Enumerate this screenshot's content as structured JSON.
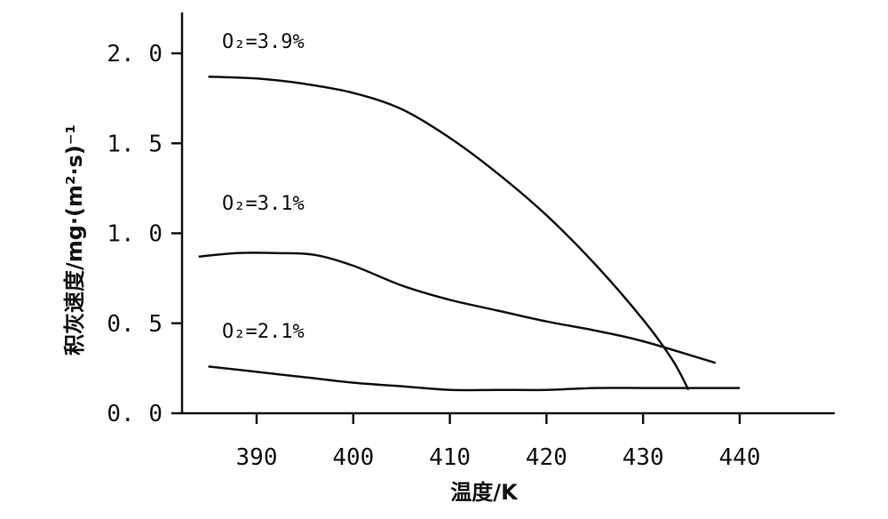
{
  "chart_data": {
    "type": "line",
    "xlabel": "温度/K",
    "ylabel": "积灰速度/mg·(m²·s)⁻¹",
    "xlim": [
      381,
      448
    ],
    "ylim": [
      0,
      2.2
    ],
    "x_ticks": [
      390,
      400,
      410,
      420,
      430,
      440
    ],
    "x_tick_labels": [
      "390",
      "400",
      "410",
      "420",
      "430",
      "440"
    ],
    "y_ticks": [
      0.0,
      0.5,
      1.0,
      1.5,
      2.0
    ],
    "y_tick_labels": [
      "0. 0",
      "0. 5",
      "1. 0",
      "1. 5",
      "2. 0"
    ],
    "series": [
      {
        "name": "O₂=3.9%",
        "x": [
          385,
          390,
          395,
          400,
          405,
          410,
          415,
          420,
          425,
          430,
          433,
          434.7
        ],
        "y": [
          1.87,
          1.86,
          1.83,
          1.78,
          1.69,
          1.53,
          1.33,
          1.1,
          0.83,
          0.52,
          0.3,
          0.13
        ]
      },
      {
        "name": "O₂=3.1%",
        "x": [
          384,
          388,
          392,
          396,
          400,
          405,
          410,
          415,
          420,
          425,
          430,
          437.5
        ],
        "y": [
          0.87,
          0.89,
          0.89,
          0.88,
          0.82,
          0.71,
          0.63,
          0.57,
          0.51,
          0.46,
          0.4,
          0.28
        ]
      },
      {
        "name": "O₂=2.1%",
        "x": [
          385,
          390,
          395,
          400,
          405,
          410,
          415,
          420,
          425,
          430,
          435,
          440
        ],
        "y": [
          0.26,
          0.23,
          0.2,
          0.17,
          0.15,
          0.13,
          0.13,
          0.13,
          0.14,
          0.14,
          0.14,
          0.14
        ]
      }
    ]
  }
}
